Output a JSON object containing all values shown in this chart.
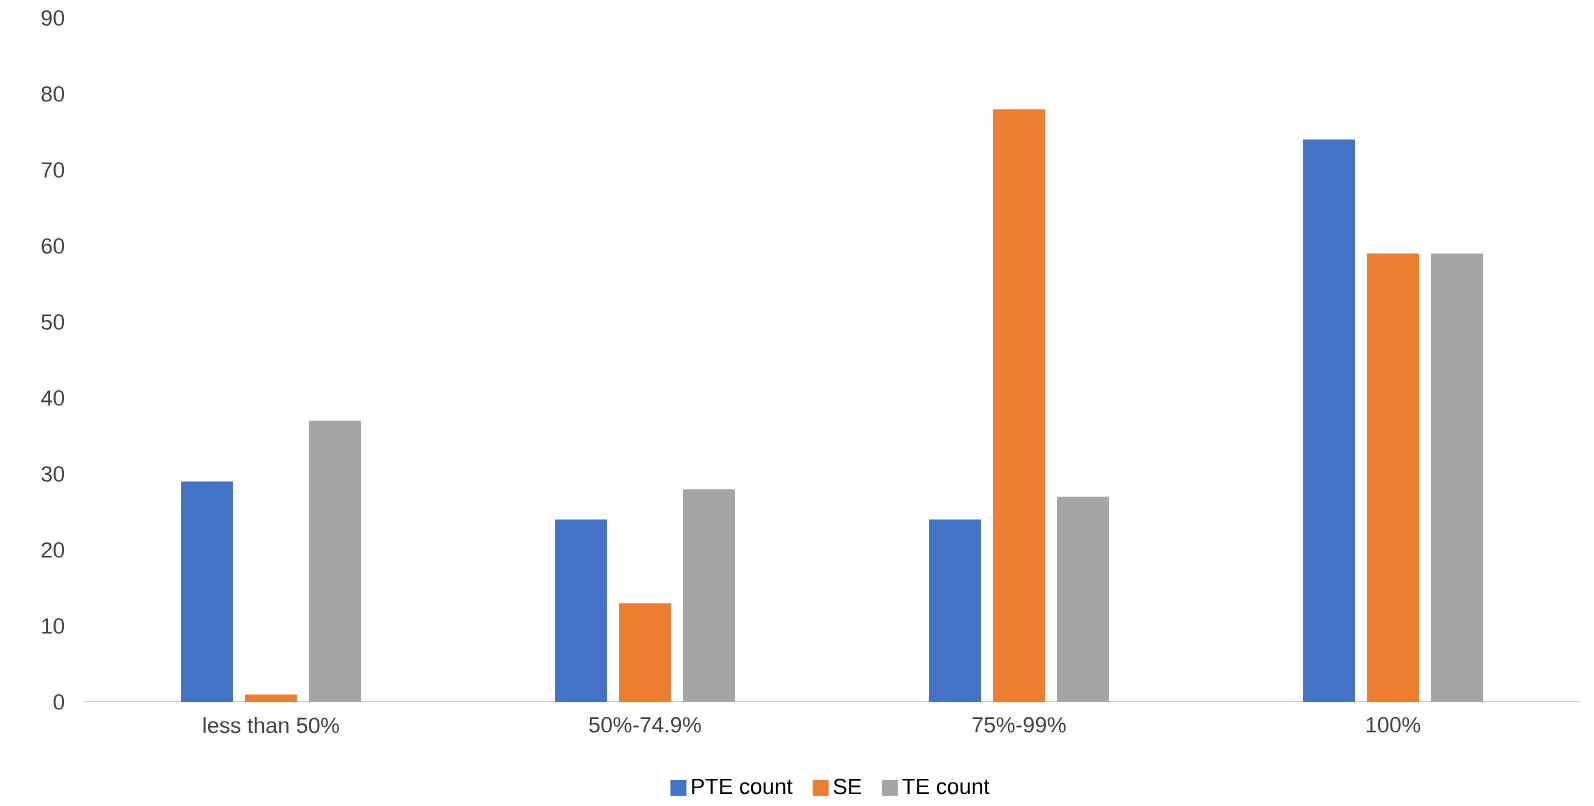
{
  "chart_data": {
    "type": "bar",
    "categories": [
      "less than 50%",
      "50%-74.9%",
      "75%-99%",
      "100%"
    ],
    "series": [
      {
        "name": "PTE count",
        "color": "#4472c4",
        "values": [
          29,
          24,
          24,
          74
        ]
      },
      {
        "name": "SE",
        "color": "#ed7d31",
        "values": [
          1,
          13,
          78,
          59
        ]
      },
      {
        "name": "TE count",
        "color": "#a5a5a5",
        "values": [
          37,
          28,
          27,
          59
        ]
      }
    ],
    "ylim": [
      0,
      90
    ],
    "yticks": [
      0,
      10,
      20,
      30,
      40,
      50,
      60,
      70,
      80,
      90
    ],
    "grid": false,
    "legend": "bottom"
  }
}
